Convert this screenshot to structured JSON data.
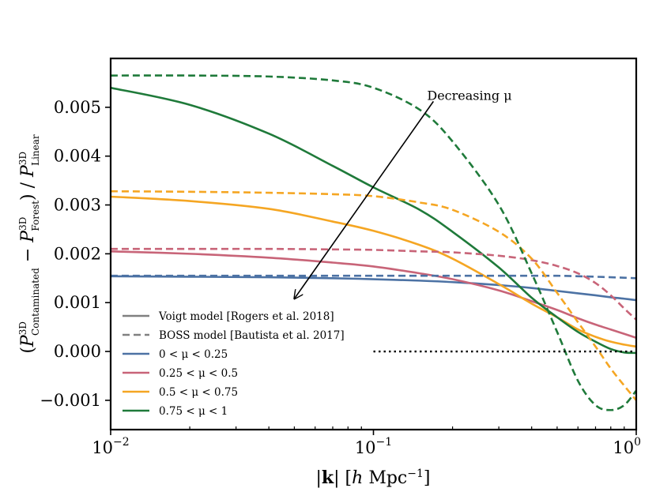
{
  "chart_data": {
    "type": "line",
    "xscale": "log",
    "xlim": [
      0.01,
      1
    ],
    "ylim": [
      -0.0016,
      0.006
    ],
    "xlabel": "|k| [h Mpc⁻¹]",
    "ylabel": "(P3D Contaminated − P3D Forest) / P3D Linear",
    "xtick_labels": [
      {
        "value": 0.01,
        "base": "10",
        "exp": "−2"
      },
      {
        "value": 0.1,
        "base": "10",
        "exp": "−1"
      },
      {
        "value": 1,
        "base": "10",
        "exp": "0"
      }
    ],
    "yticks": [
      -0.001,
      0.0,
      0.001,
      0.002,
      0.003,
      0.004,
      0.005
    ],
    "ytick_labels": [
      "−0.001",
      "0.000",
      "0.001",
      "0.002",
      "0.003",
      "0.004",
      "0.005"
    ],
    "x": [
      0.01,
      0.02,
      0.04,
      0.07,
      0.1,
      0.15,
      0.2,
      0.3,
      0.4,
      0.5,
      0.6,
      0.7,
      0.8,
      0.9,
      1.0
    ],
    "series": [
      {
        "name": "0 < μ < 0.25",
        "model": "Voigt",
        "color": "#4c72a4",
        "dash": "solid",
        "values": [
          0.00154,
          0.00153,
          0.00152,
          0.0015,
          0.00148,
          0.00145,
          0.00142,
          0.00136,
          0.0013,
          0.00124,
          0.00119,
          0.00115,
          0.00111,
          0.00108,
          0.00105
        ]
      },
      {
        "name": "0.25 < μ < 0.5",
        "model": "Voigt",
        "color": "#c86478",
        "dash": "solid",
        "values": [
          0.00205,
          0.002,
          0.00192,
          0.00182,
          0.00174,
          0.0016,
          0.00148,
          0.00125,
          0.00103,
          0.00085,
          0.00068,
          0.00055,
          0.00045,
          0.00036,
          0.00028
        ]
      },
      {
        "name": "0.5 < μ < 0.75",
        "model": "Voigt",
        "color": "#f5a623",
        "dash": "solid",
        "values": [
          0.00317,
          0.00308,
          0.00292,
          0.00266,
          0.00247,
          0.00218,
          0.0019,
          0.00138,
          0.00098,
          0.0007,
          0.00045,
          0.0003,
          0.0002,
          0.00014,
          0.0001
        ]
      },
      {
        "name": "0.75 < μ < 1",
        "model": "Voigt",
        "color": "#1f7a3a",
        "dash": "solid",
        "values": [
          0.0054,
          0.00505,
          0.00446,
          0.0038,
          0.00336,
          0.0029,
          0.00245,
          0.00172,
          0.0011,
          0.0007,
          0.0004,
          0.0002,
          5e-05,
          -2e-05,
          -3e-05
        ]
      },
      {
        "name": "0 < μ < 0.25",
        "model": "BOSS",
        "color": "#4c72a4",
        "dash": "dashed",
        "values": [
          0.00155,
          0.00155,
          0.00155,
          0.00155,
          0.00155,
          0.00155,
          0.00155,
          0.00155,
          0.00155,
          0.00155,
          0.00154,
          0.00153,
          0.00152,
          0.00151,
          0.0015
        ]
      },
      {
        "name": "0.25 < μ < 0.5",
        "model": "BOSS",
        "color": "#c86478",
        "dash": "dashed",
        "values": [
          0.0021,
          0.0021,
          0.0021,
          0.00209,
          0.00208,
          0.00205,
          0.00203,
          0.00196,
          0.00187,
          0.00175,
          0.0016,
          0.0014,
          0.00115,
          0.00088,
          0.00065
        ]
      },
      {
        "name": "0.5 < μ < 0.75",
        "model": "BOSS",
        "color": "#f5a623",
        "dash": "dashed",
        "values": [
          0.00328,
          0.00327,
          0.00325,
          0.00322,
          0.00318,
          0.00305,
          0.0029,
          0.00245,
          0.0019,
          0.0012,
          0.0006,
          0.0001,
          -0.00035,
          -0.0007,
          -0.001
        ]
      },
      {
        "name": "0.75 < μ < 1",
        "model": "BOSS",
        "color": "#1f7a3a",
        "dash": "dashed",
        "values": [
          0.00565,
          0.00565,
          0.00563,
          0.00555,
          0.0054,
          0.00495,
          0.0043,
          0.003,
          0.0016,
          0.0004,
          -0.0006,
          -0.0011,
          -0.0012,
          -0.0011,
          -0.0008
        ]
      }
    ],
    "reference_line": {
      "y": 0,
      "x_from": 0.1,
      "x_to": 1,
      "style": "dotted",
      "color": "#000000"
    },
    "annotation": {
      "text": "Decreasing μ",
      "arrow_from": [
        0.16,
        0.00525
      ],
      "arrow_to": [
        0.05,
        0.00108
      ]
    },
    "legend": {
      "position": "lower-left",
      "entries": [
        {
          "label": "Voigt model [Rogers et al. 2018]",
          "color": "#808080",
          "dash": "solid"
        },
        {
          "label": "BOSS model [Bautista et al. 2017]",
          "color": "#808080",
          "dash": "dashed"
        },
        {
          "label": "0 < μ < 0.25",
          "color": "#4c72a4",
          "dash": "solid"
        },
        {
          "label": "0.25 < μ < 0.5",
          "color": "#c86478",
          "dash": "solid"
        },
        {
          "label": "0.5 < μ < 0.75",
          "color": "#f5a623",
          "dash": "solid"
        },
        {
          "label": "0.75 < μ < 1",
          "color": "#1f7a3a",
          "dash": "solid"
        }
      ]
    }
  }
}
